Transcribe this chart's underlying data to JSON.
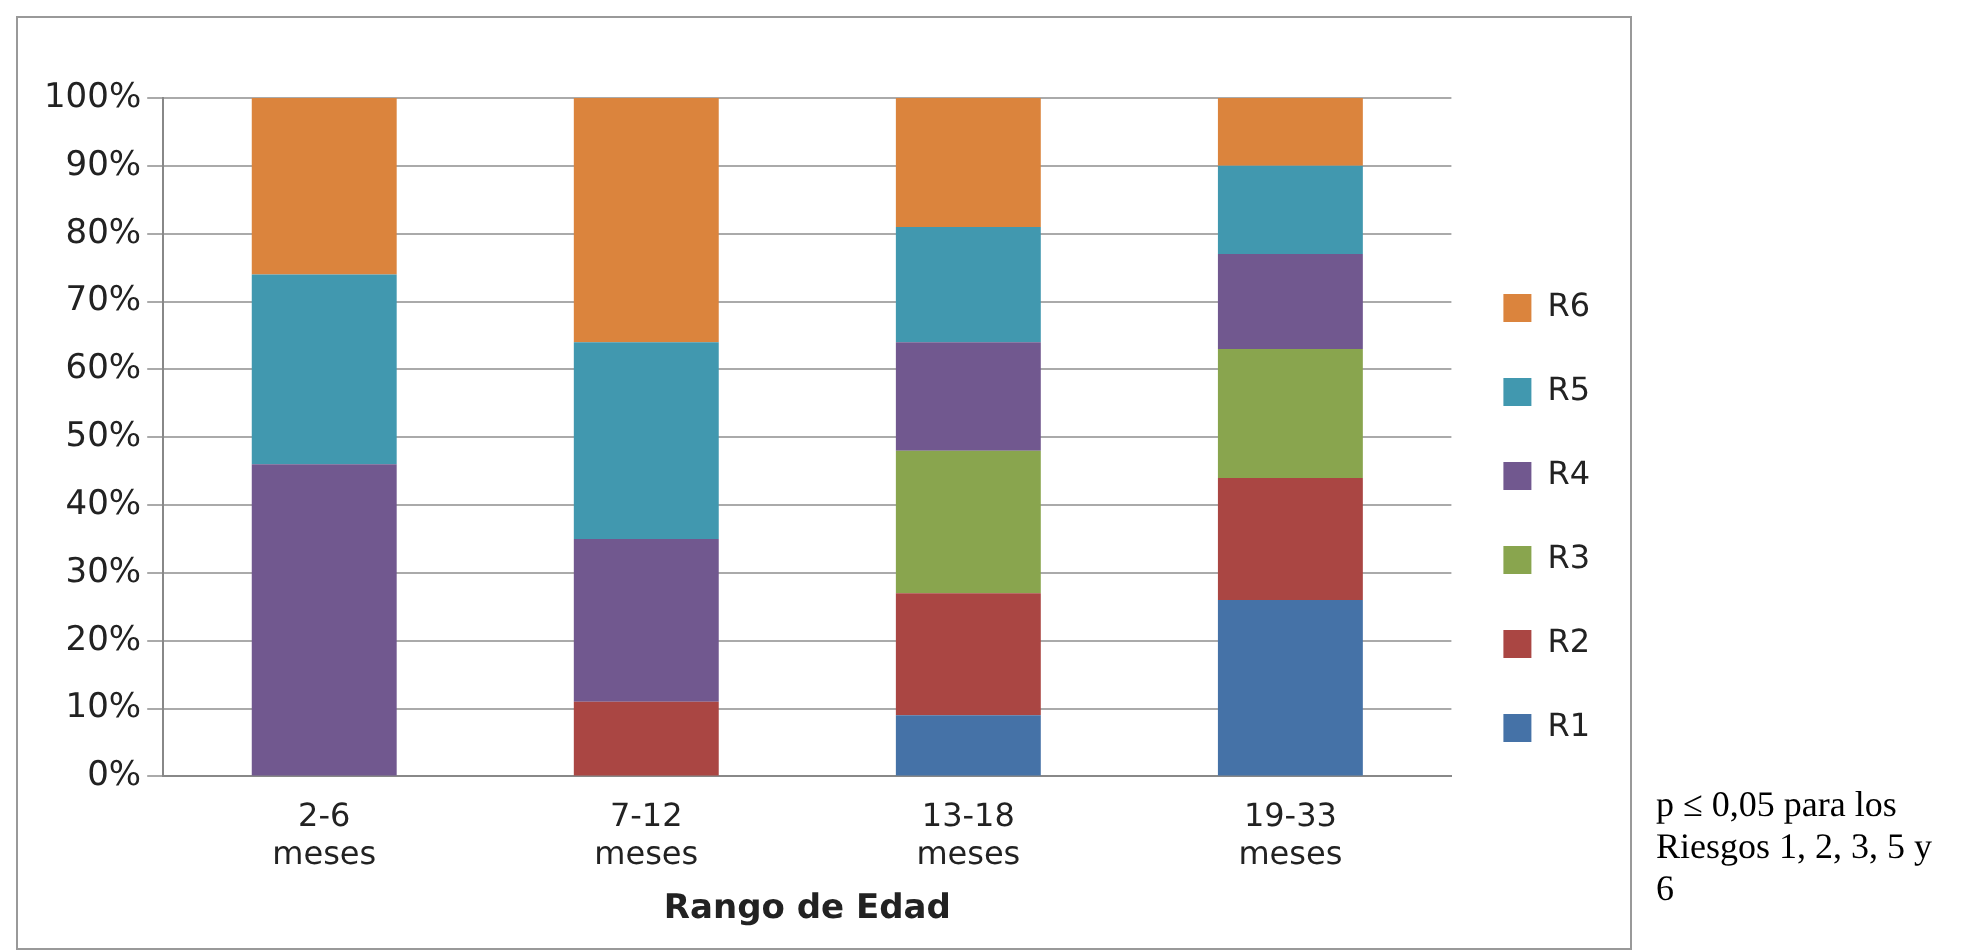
{
  "chart_data": {
    "type": "bar",
    "stacked": true,
    "xlabel": "Rango de Edad",
    "categories": [
      "2-6 meses",
      "7-12 meses",
      "13-18 meses",
      "19-33 meses"
    ],
    "series": [
      {
        "name": "R1",
        "color": "#4572a7",
        "values": [
          null,
          null,
          9,
          26
        ]
      },
      {
        "name": "R2",
        "color": "#aa4643",
        "values": [
          null,
          11,
          18,
          18
        ]
      },
      {
        "name": "R3",
        "color": "#89a54e",
        "values": [
          null,
          null,
          21,
          19
        ]
      },
      {
        "name": "R4",
        "color": "#71588f",
        "values": [
          46,
          24,
          16,
          14
        ]
      },
      {
        "name": "R5",
        "color": "#4198af",
        "values": [
          28,
          29,
          17,
          13
        ]
      },
      {
        "name": "R6",
        "color": "#db843d",
        "values": [
          26,
          36,
          19,
          10
        ]
      }
    ],
    "ylim": [
      0,
      100
    ],
    "yticks": [
      {
        "value": 0,
        "label": "0%"
      },
      {
        "value": 10,
        "label": "10%"
      },
      {
        "value": 20,
        "label": "20%"
      },
      {
        "value": 30,
        "label": "30%"
      },
      {
        "value": 40,
        "label": "40%"
      },
      {
        "value": 50,
        "label": "50%"
      },
      {
        "value": 60,
        "label": "60%"
      },
      {
        "value": 70,
        "label": "70%"
      },
      {
        "value": 80,
        "label": "80%"
      },
      {
        "value": 90,
        "label": "90%"
      },
      {
        "value": 100,
        "label": "100%"
      }
    ],
    "grid": "y",
    "legend": "right",
    "annotations": [
      "p ≤ 0,05 para los Riesgos 1, 2, 3, 5 y 6"
    ]
  }
}
